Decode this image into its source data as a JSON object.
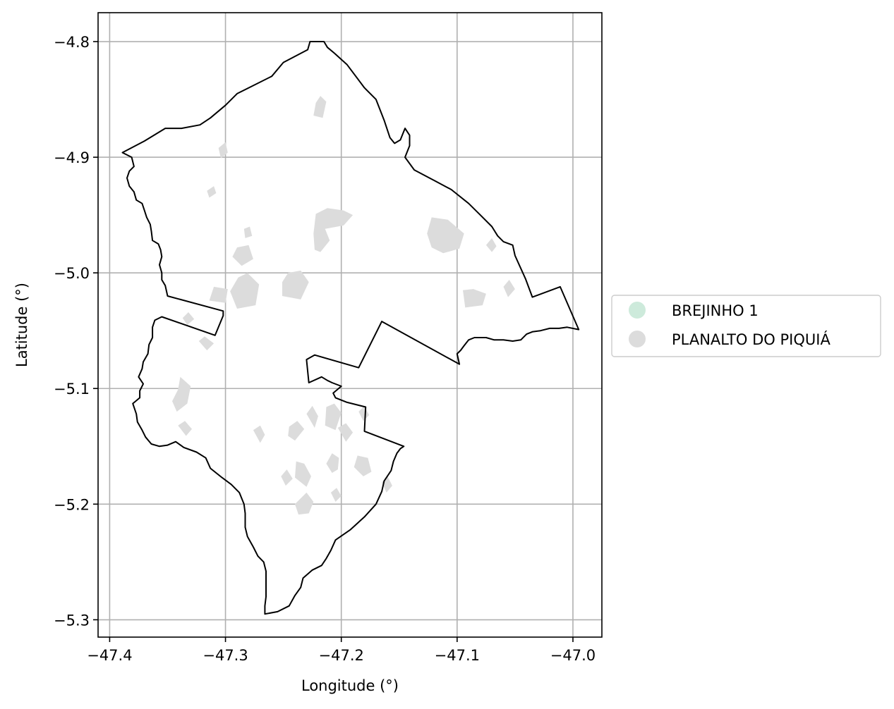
{
  "chart_data": {
    "type": "map",
    "xlabel": "Longitude (°)",
    "ylabel": "Latitude (°)",
    "xlim": [
      -47.41,
      -46.975
    ],
    "ylim": [
      -5.315,
      -4.775
    ],
    "xticks": [
      -47.4,
      -47.3,
      -47.2,
      -47.1,
      -47.0
    ],
    "yticks": [
      -4.8,
      -4.9,
      -5.0,
      -5.1,
      -5.2,
      -5.3
    ],
    "xtick_labels": [
      "−47.4",
      "−47.3",
      "−47.2",
      "−47.1",
      "−47.0"
    ],
    "ytick_labels": [
      "−4.8",
      "−4.9",
      "−5.0",
      "−5.1",
      "−5.2",
      "−5.3"
    ],
    "grid": true,
    "legend_position": "right",
    "legend": [
      {
        "label": "BREJINHO 1",
        "color": "#cdeadb"
      },
      {
        "label": "PLANALTO DO PIQUIÁ",
        "color": "#dcdcdc"
      }
    ],
    "boundary_color": "#000000",
    "patch_color": "#dcdcdc",
    "boundary": [
      [
        -47.389,
        -4.896
      ],
      [
        -47.381,
        -4.9
      ],
      [
        -47.379,
        -4.908
      ],
      [
        -47.383,
        -4.912
      ],
      [
        -47.385,
        -4.918
      ],
      [
        -47.383,
        -4.925
      ],
      [
        -47.379,
        -4.93
      ],
      [
        -47.377,
        -4.937
      ],
      [
        -47.372,
        -4.94
      ],
      [
        -47.37,
        -4.946
      ],
      [
        -47.368,
        -4.952
      ],
      [
        -47.365,
        -4.958
      ],
      [
        -47.364,
        -4.964
      ],
      [
        -47.363,
        -4.972
      ],
      [
        -47.358,
        -4.975
      ],
      [
        -47.356,
        -4.98
      ],
      [
        -47.355,
        -4.986
      ],
      [
        -47.357,
        -4.993
      ],
      [
        -47.355,
        -5.0
      ],
      [
        -47.355,
        -5.006
      ],
      [
        -47.352,
        -5.011
      ],
      [
        -47.35,
        -5.02
      ],
      [
        -47.302,
        -5.033
      ],
      [
        -47.302,
        -5.037
      ],
      [
        -47.309,
        -5.054
      ],
      [
        -47.355,
        -5.038
      ],
      [
        -47.361,
        -5.041
      ],
      [
        -47.363,
        -5.047
      ],
      [
        -47.363,
        -5.056
      ],
      [
        -47.366,
        -5.062
      ],
      [
        -47.367,
        -5.07
      ],
      [
        -47.371,
        -5.077
      ],
      [
        -47.372,
        -5.083
      ],
      [
        -47.375,
        -5.09
      ],
      [
        -47.371,
        -5.096
      ],
      [
        -47.374,
        -5.102
      ],
      [
        -47.374,
        -5.108
      ],
      [
        -47.38,
        -5.113
      ],
      [
        -47.377,
        -5.122
      ],
      [
        -47.376,
        -5.129
      ],
      [
        -47.372,
        -5.136
      ],
      [
        -47.369,
        -5.142
      ],
      [
        -47.364,
        -5.148
      ],
      [
        -47.357,
        -5.15
      ],
      [
        -47.35,
        -5.149
      ],
      [
        -47.343,
        -5.146
      ],
      [
        -47.336,
        -5.151
      ],
      [
        -47.325,
        -5.155
      ],
      [
        -47.317,
        -5.16
      ],
      [
        -47.313,
        -5.169
      ],
      [
        -47.303,
        -5.177
      ],
      [
        -47.295,
        -5.183
      ],
      [
        -47.288,
        -5.19
      ],
      [
        -47.284,
        -5.2
      ],
      [
        -47.283,
        -5.208
      ],
      [
        -47.283,
        -5.22
      ],
      [
        -47.281,
        -5.228
      ],
      [
        -47.276,
        -5.237
      ],
      [
        -47.272,
        -5.245
      ],
      [
        -47.267,
        -5.25
      ],
      [
        -47.265,
        -5.258
      ],
      [
        -47.265,
        -5.268
      ],
      [
        -47.265,
        -5.28
      ],
      [
        -47.266,
        -5.288
      ],
      [
        -47.266,
        -5.295
      ],
      [
        -47.255,
        -5.293
      ],
      [
        -47.245,
        -5.288
      ],
      [
        -47.24,
        -5.279
      ],
      [
        -47.235,
        -5.272
      ],
      [
        -47.233,
        -5.264
      ],
      [
        -47.225,
        -5.257
      ],
      [
        -47.217,
        -5.253
      ],
      [
        -47.213,
        -5.247
      ],
      [
        -47.209,
        -5.24
      ],
      [
        -47.205,
        -5.231
      ],
      [
        -47.192,
        -5.222
      ],
      [
        -47.18,
        -5.211
      ],
      [
        -47.17,
        -5.2
      ],
      [
        -47.165,
        -5.189
      ],
      [
        -47.163,
        -5.18
      ],
      [
        -47.157,
        -5.171
      ],
      [
        -47.155,
        -5.163
      ],
      [
        -47.152,
        -5.156
      ],
      [
        -47.149,
        -5.152
      ],
      [
        -47.146,
        -5.15
      ],
      [
        -47.18,
        -5.137
      ],
      [
        -47.179,
        -5.116
      ],
      [
        -47.195,
        -5.112
      ],
      [
        -47.205,
        -5.108
      ],
      [
        -47.207,
        -5.104
      ],
      [
        -47.2,
        -5.098
      ],
      [
        -47.208,
        -5.095
      ],
      [
        -47.212,
        -5.093
      ],
      [
        -47.217,
        -5.09
      ],
      [
        -47.228,
        -5.095
      ],
      [
        -47.23,
        -5.075
      ],
      [
        -47.223,
        -5.071
      ],
      [
        -47.185,
        -5.082
      ],
      [
        -47.165,
        -5.042
      ],
      [
        -47.098,
        -5.079
      ],
      [
        -47.1,
        -5.07
      ],
      [
        -47.097,
        -5.067
      ],
      [
        -47.094,
        -5.063
      ],
      [
        -47.09,
        -5.058
      ],
      [
        -47.085,
        -5.056
      ],
      [
        -47.075,
        -5.056
      ],
      [
        -47.068,
        -5.058
      ],
      [
        -47.06,
        -5.058
      ],
      [
        -47.052,
        -5.059
      ],
      [
        -47.045,
        -5.058
      ],
      [
        -47.04,
        -5.053
      ],
      [
        -47.035,
        -5.051
      ],
      [
        -47.028,
        -5.05
      ],
      [
        -47.02,
        -5.048
      ],
      [
        -47.012,
        -5.048
      ],
      [
        -47.005,
        -5.047
      ],
      [
        -46.995,
        -5.049
      ],
      [
        -47.011,
        -5.012
      ],
      [
        -47.035,
        -5.021
      ],
      [
        -47.041,
        -5.005
      ],
      [
        -47.046,
        -4.994
      ],
      [
        -47.05,
        -4.985
      ],
      [
        -47.052,
        -4.976
      ],
      [
        -47.06,
        -4.973
      ],
      [
        -47.065,
        -4.968
      ],
      [
        -47.07,
        -4.96
      ],
      [
        -47.08,
        -4.95
      ],
      [
        -47.09,
        -4.94
      ],
      [
        -47.105,
        -4.928
      ],
      [
        -47.12,
        -4.92
      ],
      [
        -47.137,
        -4.911
      ],
      [
        -47.145,
        -4.9
      ],
      [
        -47.141,
        -4.89
      ],
      [
        -47.141,
        -4.881
      ],
      [
        -47.145,
        -4.875
      ],
      [
        -47.149,
        -4.885
      ],
      [
        -47.154,
        -4.888
      ],
      [
        -47.158,
        -4.883
      ],
      [
        -47.163,
        -4.868
      ],
      [
        -47.17,
        -4.85
      ],
      [
        -47.18,
        -4.84
      ],
      [
        -47.195,
        -4.82
      ],
      [
        -47.206,
        -4.81
      ],
      [
        -47.212,
        -4.805
      ],
      [
        -47.215,
        -4.8
      ],
      [
        -47.227,
        -4.8
      ],
      [
        -47.229,
        -4.807
      ],
      [
        -47.25,
        -4.818
      ],
      [
        -47.26,
        -4.83
      ],
      [
        -47.29,
        -4.845
      ],
      [
        -47.3,
        -4.855
      ],
      [
        -47.313,
        -4.866
      ],
      [
        -47.322,
        -4.872
      ],
      [
        -47.338,
        -4.875
      ],
      [
        -47.352,
        -4.875
      ],
      [
        -47.37,
        -4.886
      ],
      [
        -47.389,
        -4.896
      ]
    ],
    "patches": [
      [
        [
          -47.222,
          -4.853
        ],
        [
          -47.218,
          -4.847
        ],
        [
          -47.213,
          -4.852
        ],
        [
          -47.216,
          -4.866
        ],
        [
          -47.224,
          -4.864
        ]
      ],
      [
        [
          -47.298,
          -4.896
        ],
        [
          -47.3,
          -4.887
        ],
        [
          -47.306,
          -4.892
        ],
        [
          -47.304,
          -4.901
        ]
      ],
      [
        [
          -47.308,
          -4.931
        ],
        [
          -47.31,
          -4.925
        ],
        [
          -47.316,
          -4.929
        ],
        [
          -47.314,
          -4.935
        ]
      ],
      [
        [
          -47.224,
          -4.966
        ],
        [
          -47.222,
          -4.949
        ],
        [
          -47.212,
          -4.944
        ],
        [
          -47.198,
          -4.946
        ],
        [
          -47.19,
          -4.95
        ],
        [
          -47.198,
          -4.959
        ],
        [
          -47.214,
          -4.962
        ],
        [
          -47.21,
          -4.972
        ],
        [
          -47.218,
          -4.982
        ],
        [
          -47.223,
          -4.98
        ]
      ],
      [
        [
          -47.122,
          -4.952
        ],
        [
          -47.108,
          -4.954
        ],
        [
          -47.094,
          -4.966
        ],
        [
          -47.098,
          -4.979
        ],
        [
          -47.112,
          -4.983
        ],
        [
          -47.122,
          -4.978
        ],
        [
          -47.126,
          -4.966
        ]
      ],
      [
        [
          -47.284,
          -4.962
        ],
        [
          -47.279,
          -4.96
        ],
        [
          -47.277,
          -4.968
        ],
        [
          -47.283,
          -4.97
        ]
      ],
      [
        [
          -47.294,
          -4.986
        ],
        [
          -47.29,
          -4.978
        ],
        [
          -47.28,
          -4.976
        ],
        [
          -47.276,
          -4.988
        ],
        [
          -47.286,
          -4.994
        ]
      ],
      [
        [
          -47.281,
          -5.0
        ],
        [
          -47.271,
          -5.01
        ],
        [
          -47.274,
          -5.028
        ],
        [
          -47.29,
          -5.031
        ],
        [
          -47.296,
          -5.016
        ],
        [
          -47.289,
          -5.004
        ]
      ],
      [
        [
          -47.246,
          -5.0
        ],
        [
          -47.235,
          -4.998
        ],
        [
          -47.228,
          -5.008
        ],
        [
          -47.235,
          -5.023
        ],
        [
          -47.251,
          -5.02
        ],
        [
          -47.251,
          -5.008
        ]
      ],
      [
        [
          -47.095,
          -5.015
        ],
        [
          -47.086,
          -5.014
        ],
        [
          -47.075,
          -5.018
        ],
        [
          -47.078,
          -5.028
        ],
        [
          -47.093,
          -5.03
        ]
      ],
      [
        [
          -47.314,
          -5.024
        ],
        [
          -47.31,
          -5.012
        ],
        [
          -47.298,
          -5.014
        ],
        [
          -47.3,
          -5.026
        ]
      ],
      [
        [
          -47.339,
          -5.09
        ],
        [
          -47.33,
          -5.098
        ],
        [
          -47.333,
          -5.113
        ],
        [
          -47.342,
          -5.12
        ],
        [
          -47.346,
          -5.111
        ],
        [
          -47.341,
          -5.101
        ]
      ],
      [
        [
          -47.341,
          -5.132
        ],
        [
          -47.335,
          -5.128
        ],
        [
          -47.329,
          -5.135
        ],
        [
          -47.334,
          -5.141
        ]
      ],
      [
        [
          -47.213,
          -5.116
        ],
        [
          -47.206,
          -5.113
        ],
        [
          -47.2,
          -5.121
        ],
        [
          -47.205,
          -5.136
        ],
        [
          -47.214,
          -5.132
        ]
      ],
      [
        [
          -47.23,
          -5.122
        ],
        [
          -47.225,
          -5.115
        ],
        [
          -47.22,
          -5.124
        ],
        [
          -47.223,
          -5.134
        ]
      ],
      [
        [
          -47.208,
          -5.156
        ],
        [
          -47.202,
          -5.16
        ],
        [
          -47.203,
          -5.17
        ],
        [
          -47.208,
          -5.173
        ],
        [
          -47.213,
          -5.165
        ]
      ],
      [
        [
          -47.186,
          -5.158
        ],
        [
          -47.177,
          -5.16
        ],
        [
          -47.174,
          -5.172
        ],
        [
          -47.181,
          -5.176
        ],
        [
          -47.189,
          -5.168
        ]
      ],
      [
        [
          -47.239,
          -5.163
        ],
        [
          -47.232,
          -5.165
        ],
        [
          -47.226,
          -5.176
        ],
        [
          -47.23,
          -5.185
        ],
        [
          -47.24,
          -5.177
        ]
      ],
      [
        [
          -47.23,
          -5.19
        ],
        [
          -47.24,
          -5.2
        ],
        [
          -47.237,
          -5.209
        ],
        [
          -47.228,
          -5.208
        ],
        [
          -47.224,
          -5.198
        ]
      ],
      [
        [
          -47.245,
          -5.133
        ],
        [
          -47.238,
          -5.128
        ],
        [
          -47.232,
          -5.135
        ],
        [
          -47.24,
          -5.145
        ],
        [
          -47.246,
          -5.141
        ]
      ],
      [
        [
          -47.203,
          -5.134
        ],
        [
          -47.196,
          -5.13
        ],
        [
          -47.19,
          -5.138
        ],
        [
          -47.196,
          -5.146
        ]
      ],
      [
        [
          -47.276,
          -5.136
        ],
        [
          -47.27,
          -5.132
        ],
        [
          -47.266,
          -5.14
        ],
        [
          -47.27,
          -5.147
        ]
      ],
      [
        [
          -47.323,
          -5.059
        ],
        [
          -47.318,
          -5.055
        ],
        [
          -47.31,
          -5.061
        ],
        [
          -47.316,
          -5.067
        ]
      ],
      [
        [
          -47.337,
          -5.039
        ],
        [
          -47.332,
          -5.034
        ],
        [
          -47.327,
          -5.04
        ],
        [
          -47.333,
          -5.045
        ]
      ],
      [
        [
          -47.075,
          -4.976
        ],
        [
          -47.07,
          -4.97
        ],
        [
          -47.066,
          -4.977
        ],
        [
          -47.07,
          -4.982
        ]
      ],
      [
        [
          -47.06,
          -5.012
        ],
        [
          -47.055,
          -5.006
        ],
        [
          -47.05,
          -5.014
        ],
        [
          -47.056,
          -5.021
        ]
      ],
      [
        [
          -47.185,
          -5.12
        ],
        [
          -47.18,
          -5.115
        ],
        [
          -47.176,
          -5.123
        ],
        [
          -47.181,
          -5.128
        ]
      ],
      [
        [
          -47.252,
          -5.176
        ],
        [
          -47.247,
          -5.17
        ],
        [
          -47.242,
          -5.178
        ],
        [
          -47.248,
          -5.184
        ]
      ],
      [
        [
          -47.165,
          -5.181
        ],
        [
          -47.16,
          -5.176
        ],
        [
          -47.156,
          -5.184
        ],
        [
          -47.161,
          -5.19
        ]
      ],
      [
        [
          -47.209,
          -5.19
        ],
        [
          -47.204,
          -5.186
        ],
        [
          -47.2,
          -5.193
        ],
        [
          -47.205,
          -5.198
        ]
      ]
    ]
  }
}
